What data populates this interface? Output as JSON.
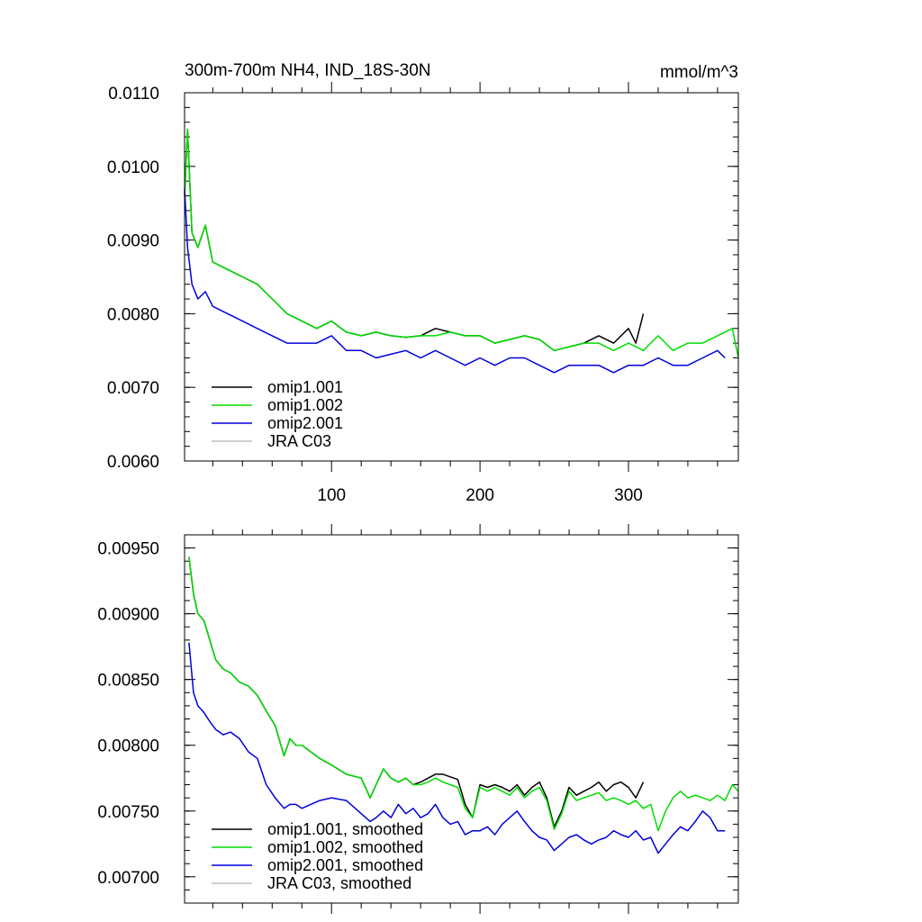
{
  "chart_data": [
    {
      "type": "line",
      "title": "300m-700m NH4, IND_18S-30N",
      "units": "mmol/m^3",
      "xlim": [
        1,
        374
      ],
      "ylim": [
        0.006,
        0.011
      ],
      "xticks": [
        100,
        200,
        300
      ],
      "xtick_labels": [
        "100",
        "200",
        "300"
      ],
      "yticks": [
        0.006,
        0.007,
        0.008,
        0.009,
        0.01,
        0.011
      ],
      "ytick_labels": [
        "0.0060",
        "0.0070",
        "0.0080",
        "0.0090",
        "0.0100",
        "0.0110"
      ],
      "legend_position": "bottom-left",
      "legend": [
        "omip1.001",
        "omip1.002",
        "omip2.001",
        "JRA C03"
      ],
      "series": [
        {
          "name": "omip1.001",
          "color": "#000000",
          "x": [
            1,
            3,
            6,
            10,
            15,
            20,
            30,
            40,
            50,
            60,
            70,
            80,
            90,
            100,
            110,
            120,
            130,
            140,
            150,
            160,
            170,
            180,
            190,
            200,
            210,
            220,
            230,
            240,
            250,
            260,
            270,
            280,
            290,
            300,
            305,
            310
          ],
          "y": [
            0.0096,
            0.0105,
            0.0091,
            0.0089,
            0.0092,
            0.0087,
            0.0086,
            0.0085,
            0.0084,
            0.0082,
            0.008,
            0.0079,
            0.0078,
            0.0079,
            0.00775,
            0.0077,
            0.00775,
            0.0077,
            0.00768,
            0.0077,
            0.0078,
            0.00775,
            0.0077,
            0.0077,
            0.0076,
            0.00765,
            0.0077,
            0.00765,
            0.0075,
            0.00755,
            0.0076,
            0.0077,
            0.0076,
            0.0078,
            0.0076,
            0.008
          ]
        },
        {
          "name": "omip1.002",
          "color": "#00dd00",
          "x": [
            1,
            3,
            6,
            10,
            15,
            20,
            30,
            40,
            50,
            60,
            70,
            80,
            90,
            100,
            110,
            120,
            130,
            140,
            150,
            160,
            170,
            180,
            190,
            200,
            210,
            220,
            230,
            240,
            250,
            260,
            270,
            280,
            290,
            300,
            310,
            320,
            330,
            340,
            350,
            360,
            370,
            374
          ],
          "y": [
            0.0096,
            0.0105,
            0.0091,
            0.0089,
            0.0092,
            0.0087,
            0.0086,
            0.0085,
            0.0084,
            0.0082,
            0.008,
            0.0079,
            0.0078,
            0.0079,
            0.00775,
            0.0077,
            0.00775,
            0.0077,
            0.00768,
            0.0077,
            0.0077,
            0.00775,
            0.0077,
            0.0077,
            0.0076,
            0.00765,
            0.0077,
            0.00765,
            0.0075,
            0.00755,
            0.0076,
            0.0076,
            0.0075,
            0.0076,
            0.0075,
            0.0077,
            0.0075,
            0.0076,
            0.0076,
            0.0077,
            0.0078,
            0.0074
          ]
        },
        {
          "name": "omip2.001",
          "color": "#0000dd",
          "x": [
            1,
            3,
            6,
            10,
            15,
            20,
            30,
            40,
            50,
            60,
            70,
            80,
            90,
            100,
            110,
            120,
            130,
            140,
            150,
            160,
            170,
            180,
            190,
            200,
            210,
            220,
            230,
            240,
            250,
            260,
            270,
            280,
            290,
            300,
            310,
            320,
            330,
            340,
            350,
            360,
            365
          ],
          "y": [
            0.0097,
            0.0089,
            0.0084,
            0.0082,
            0.0083,
            0.0081,
            0.008,
            0.0079,
            0.0078,
            0.0077,
            0.0076,
            0.0076,
            0.0076,
            0.0077,
            0.0075,
            0.0075,
            0.0074,
            0.00745,
            0.0075,
            0.0074,
            0.0075,
            0.0074,
            0.0073,
            0.0074,
            0.0073,
            0.0074,
            0.0074,
            0.0073,
            0.0072,
            0.0073,
            0.0073,
            0.0073,
            0.0072,
            0.0073,
            0.0073,
            0.0074,
            0.0073,
            0.0073,
            0.0074,
            0.0075,
            0.0074
          ]
        },
        {
          "name": "JRA C03",
          "color": "#c0c0c0",
          "x": [],
          "y": []
        }
      ]
    },
    {
      "type": "line",
      "title": "",
      "xlim": [
        1,
        374
      ],
      "ylim": [
        0.0068,
        0.0096
      ],
      "xticks": [
        100,
        200,
        300
      ],
      "xtick_labels": [
        "",
        "",
        ""
      ],
      "yticks": [
        0.007,
        0.0075,
        0.008,
        0.0085,
        0.009,
        0.0095
      ],
      "ytick_labels": [
        "0.00700",
        "0.00750",
        "0.00800",
        "0.00850",
        "0.00900",
        "0.00950"
      ],
      "legend_position": "bottom-left",
      "legend": [
        "omip1.001, smoothed",
        "omip1.002, smoothed",
        "omip2.001, smoothed",
        "JRA C03, smoothed"
      ],
      "series": [
        {
          "name": "omip1.001, smoothed",
          "color": "#000000",
          "x": [
            4,
            7,
            10,
            14,
            18,
            22,
            27,
            32,
            38,
            44,
            50,
            56,
            62,
            68,
            72,
            76,
            80,
            86,
            92,
            100,
            110,
            120,
            126,
            130,
            135,
            140,
            145,
            150,
            155,
            160,
            165,
            170,
            175,
            180,
            185,
            190,
            195,
            200,
            205,
            210,
            215,
            220,
            225,
            230,
            235,
            240,
            245,
            250,
            255,
            260,
            265,
            270,
            275,
            280,
            285,
            290,
            295,
            300,
            305,
            310
          ],
          "y": [
            0.00943,
            0.00915,
            0.009,
            0.00895,
            0.0088,
            0.00865,
            0.00858,
            0.00855,
            0.00848,
            0.00845,
            0.00838,
            0.00826,
            0.00815,
            0.00792,
            0.00805,
            0.008,
            0.008,
            0.00795,
            0.0079,
            0.00785,
            0.00778,
            0.00775,
            0.0076,
            0.0077,
            0.00782,
            0.00775,
            0.00772,
            0.00775,
            0.0077,
            0.00772,
            0.00775,
            0.00778,
            0.00778,
            0.00776,
            0.00774,
            0.00755,
            0.00745,
            0.0077,
            0.00768,
            0.0077,
            0.00768,
            0.00765,
            0.0077,
            0.00762,
            0.00768,
            0.00772,
            0.0076,
            0.00738,
            0.0075,
            0.00768,
            0.00762,
            0.00765,
            0.00768,
            0.00772,
            0.00765,
            0.0077,
            0.00772,
            0.00768,
            0.0076,
            0.00772
          ]
        },
        {
          "name": "omip1.002, smoothed",
          "color": "#00dd00",
          "x": [
            4,
            7,
            10,
            14,
            18,
            22,
            27,
            32,
            38,
            44,
            50,
            56,
            62,
            68,
            72,
            76,
            80,
            86,
            92,
            100,
            110,
            120,
            126,
            130,
            135,
            140,
            145,
            150,
            155,
            160,
            165,
            170,
            175,
            180,
            185,
            190,
            195,
            200,
            205,
            210,
            215,
            220,
            225,
            230,
            235,
            240,
            245,
            250,
            255,
            260,
            265,
            270,
            275,
            280,
            285,
            290,
            295,
            300,
            305,
            310,
            315,
            320,
            325,
            330,
            335,
            340,
            345,
            350,
            355,
            360,
            365,
            370,
            374
          ],
          "y": [
            0.00943,
            0.00915,
            0.009,
            0.00895,
            0.0088,
            0.00865,
            0.00858,
            0.00855,
            0.00848,
            0.00845,
            0.00838,
            0.00826,
            0.00815,
            0.00792,
            0.00805,
            0.008,
            0.008,
            0.00795,
            0.0079,
            0.00785,
            0.00778,
            0.00775,
            0.0076,
            0.0077,
            0.00782,
            0.00775,
            0.00772,
            0.00775,
            0.0077,
            0.0077,
            0.00772,
            0.00775,
            0.00772,
            0.0077,
            0.00768,
            0.00752,
            0.00745,
            0.00768,
            0.00765,
            0.00768,
            0.00765,
            0.00762,
            0.00768,
            0.0076,
            0.00765,
            0.00768,
            0.00758,
            0.00736,
            0.00748,
            0.00765,
            0.00758,
            0.0076,
            0.00762,
            0.00764,
            0.00758,
            0.0076,
            0.00758,
            0.00755,
            0.00758,
            0.00752,
            0.00755,
            0.00735,
            0.0075,
            0.0076,
            0.00765,
            0.0076,
            0.00762,
            0.0076,
            0.00758,
            0.00762,
            0.00758,
            0.0077,
            0.00765
          ]
        },
        {
          "name": "omip2.001, smoothed",
          "color": "#0000dd",
          "x": [
            4,
            7,
            10,
            14,
            18,
            22,
            27,
            32,
            38,
            44,
            50,
            56,
            62,
            68,
            72,
            76,
            80,
            86,
            92,
            100,
            110,
            120,
            126,
            130,
            135,
            140,
            145,
            150,
            155,
            160,
            165,
            170,
            175,
            180,
            185,
            190,
            195,
            200,
            205,
            210,
            215,
            220,
            225,
            230,
            235,
            240,
            245,
            250,
            255,
            260,
            265,
            270,
            275,
            280,
            285,
            290,
            295,
            300,
            305,
            310,
            315,
            320,
            325,
            330,
            335,
            340,
            345,
            350,
            355,
            360,
            365
          ],
          "y": [
            0.00878,
            0.0084,
            0.0083,
            0.00825,
            0.00818,
            0.00812,
            0.00808,
            0.0081,
            0.00805,
            0.00795,
            0.0079,
            0.0077,
            0.0076,
            0.00752,
            0.00755,
            0.00755,
            0.00752,
            0.00755,
            0.00758,
            0.0076,
            0.00758,
            0.00748,
            0.00742,
            0.00745,
            0.0075,
            0.00745,
            0.00755,
            0.00748,
            0.00752,
            0.00745,
            0.00748,
            0.00755,
            0.00745,
            0.0074,
            0.00742,
            0.00732,
            0.00735,
            0.00735,
            0.00738,
            0.00732,
            0.0074,
            0.00745,
            0.0075,
            0.00742,
            0.00735,
            0.0073,
            0.00728,
            0.0072,
            0.00725,
            0.0073,
            0.00732,
            0.00728,
            0.00725,
            0.00728,
            0.0073,
            0.00735,
            0.00732,
            0.0073,
            0.00735,
            0.00728,
            0.0073,
            0.00718,
            0.00725,
            0.00732,
            0.00738,
            0.00735,
            0.00742,
            0.0075,
            0.00745,
            0.00735,
            0.00735
          ]
        },
        {
          "name": "JRA C03, smoothed",
          "color": "#c0c0c0",
          "x": [],
          "y": []
        }
      ]
    }
  ]
}
